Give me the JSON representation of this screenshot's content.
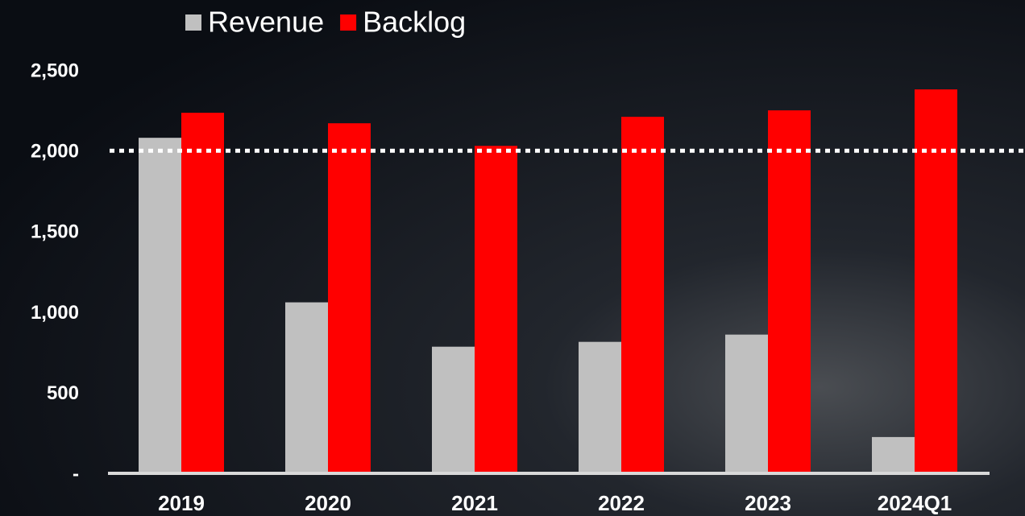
{
  "chart_data": {
    "type": "bar",
    "categories": [
      "2019",
      "2020",
      "2021",
      "2022",
      "2023",
      "2024Q1"
    ],
    "series": [
      {
        "name": "Revenue",
        "color": "#c0c0c0",
        "values": [
          2080,
          1060,
          785,
          815,
          860,
          225
        ]
      },
      {
        "name": "Backlog",
        "color": "#ff0000",
        "values": [
          2235,
          2170,
          2030,
          2210,
          2250,
          2380
        ]
      }
    ],
    "ylim": [
      0,
      2500
    ],
    "yticks": [
      {
        "value": 0,
        "label": "-"
      },
      500,
      {
        "value": 1000,
        "label": "1,000"
      },
      {
        "value": 1500,
        "label": "1,500"
      },
      {
        "value": 2000,
        "label": "2,000"
      },
      {
        "value": 2500,
        "label": "2,500"
      }
    ],
    "reference_line": 2000,
    "grid": false
  }
}
